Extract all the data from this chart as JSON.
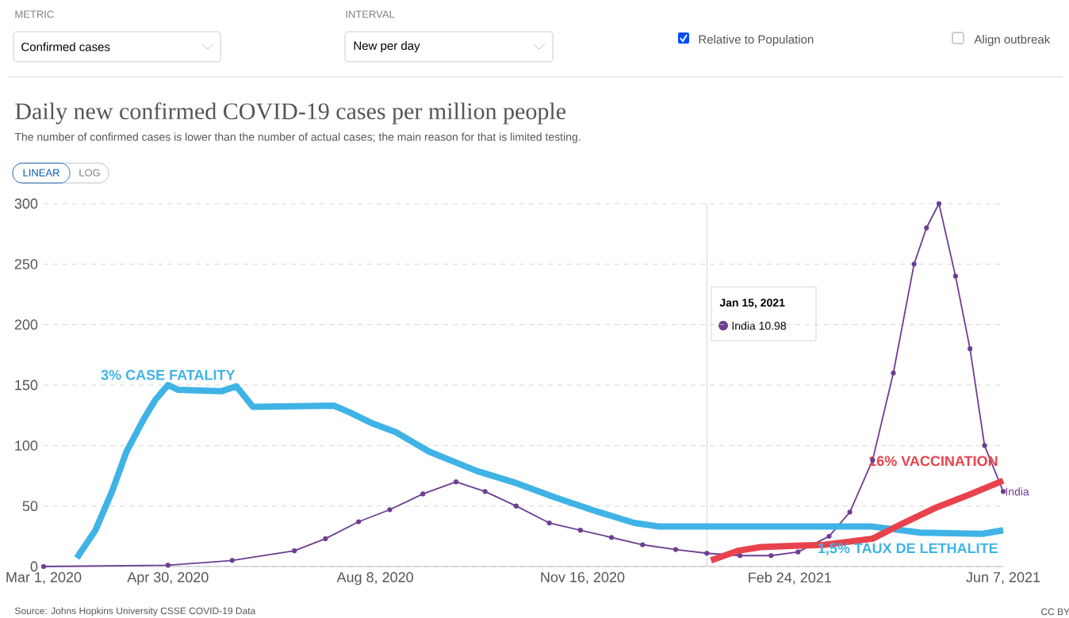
{
  "chart_data": {
    "type": "line",
    "title": "Daily new confirmed COVID-19 cases per million people",
    "subtitle": "The number of confirmed cases is lower than the number of actual cases; the main reason for that is limited testing.",
    "xlim": [
      "2020-03-01",
      "2021-06-07"
    ],
    "ylim": [
      0,
      300
    ],
    "xticks": [
      {
        "value": "2020-03-01",
        "label": "Mar 1, 2020"
      },
      {
        "value": "2020-04-30",
        "label": "Apr 30, 2020"
      },
      {
        "value": "2020-08-08",
        "label": "Aug 8, 2020"
      },
      {
        "value": "2020-11-16",
        "label": "Nov 16, 2020"
      },
      {
        "value": "2021-02-24",
        "label": "Feb 24, 2021"
      },
      {
        "value": "2021-06-07",
        "label": "Jun 7, 2021"
      }
    ],
    "yticks": [
      0,
      50,
      100,
      150,
      200,
      250,
      300
    ],
    "grid": "y",
    "line_style": "solid",
    "series": [
      {
        "name": "India",
        "color": "#6d3e91",
        "marker": "circle",
        "x": [
          "2020-03-01",
          "2020-04-30",
          "2020-05-31",
          "2020-06-30",
          "2020-07-15",
          "2020-07-31",
          "2020-08-15",
          "2020-08-31",
          "2020-09-16",
          "2020-09-30",
          "2020-10-15",
          "2020-10-31",
          "2020-11-15",
          "2020-11-30",
          "2020-12-15",
          "2020-12-31",
          "2021-01-15",
          "2021-01-31",
          "2021-02-15",
          "2021-02-28",
          "2021-03-15",
          "2021-03-25",
          "2021-04-05",
          "2021-04-15",
          "2021-04-25",
          "2021-05-01",
          "2021-05-07",
          "2021-05-15",
          "2021-05-22",
          "2021-05-29",
          "2021-06-07"
        ],
        "values": [
          0,
          1,
          5,
          13,
          23,
          37,
          47,
          60,
          70,
          62,
          50,
          36,
          30,
          24,
          18,
          14,
          10.98,
          9,
          9,
          12,
          25,
          45,
          88,
          160,
          250,
          280,
          300,
          240,
          180,
          100,
          62
        ]
      },
      {
        "color": "#3fb3e6",
        "marker": "none",
        "x": [
          "2020-03-17",
          "2020-03-26",
          "2020-04-03",
          "2020-04-10",
          "2020-04-18",
          "2020-04-24",
          "2020-04-30",
          "2020-05-05",
          "2020-05-26",
          "2020-06-02",
          "2020-06-10",
          "2020-07-19",
          "2020-07-26",
          "2020-08-07",
          "2020-08-18",
          "2020-09-03",
          "2020-09-26",
          "2020-10-15",
          "2020-11-03",
          "2020-11-22",
          "2020-12-11",
          "2020-12-23",
          "2021-04-05",
          "2021-04-28",
          "2021-05-28",
          "2021-06-07"
        ],
        "values": [
          7,
          30,
          62,
          95,
          121,
          138,
          150,
          146,
          145,
          149,
          132,
          133,
          128,
          118,
          111,
          95,
          79,
          69,
          57,
          46,
          36,
          33,
          33,
          28,
          27,
          30
        ]
      },
      {
        "color": "#e8434d",
        "marker": "none",
        "x": [
          "2021-01-17",
          "2021-01-30",
          "2021-02-10",
          "2021-03-13",
          "2021-04-05",
          "2021-04-20",
          "2021-05-06",
          "2021-05-21",
          "2021-06-07"
        ],
        "values": [
          5,
          13,
          16,
          18,
          23,
          36,
          49,
          59,
          71
        ]
      }
    ],
    "ref_lines": [
      {
        "axis": "x",
        "value": "2021-01-15",
        "color": "#cccccc"
      }
    ],
    "annotations": [
      "METRIC",
      "Confirmed cases",
      "INTERVAL",
      "New per day",
      "Relative to Population",
      "Align outbreak",
      "LINEAR",
      "LOG",
      "Jan 15, 2021",
      "India 10.98",
      "Source: Johns Hopkins University CSSE COVID-19 Data",
      "CC BY",
      {
        "text": "3% CASE FATALITY",
        "x": "2020-04-30",
        "y": 150
      },
      {
        "text": "16% VACCINATION",
        "x": "2021-06-07",
        "y": 71
      },
      {
        "text": "1,5% TAUX DE LETHALITE",
        "x": "2021-06-07",
        "y": 30
      }
    ]
  }
}
